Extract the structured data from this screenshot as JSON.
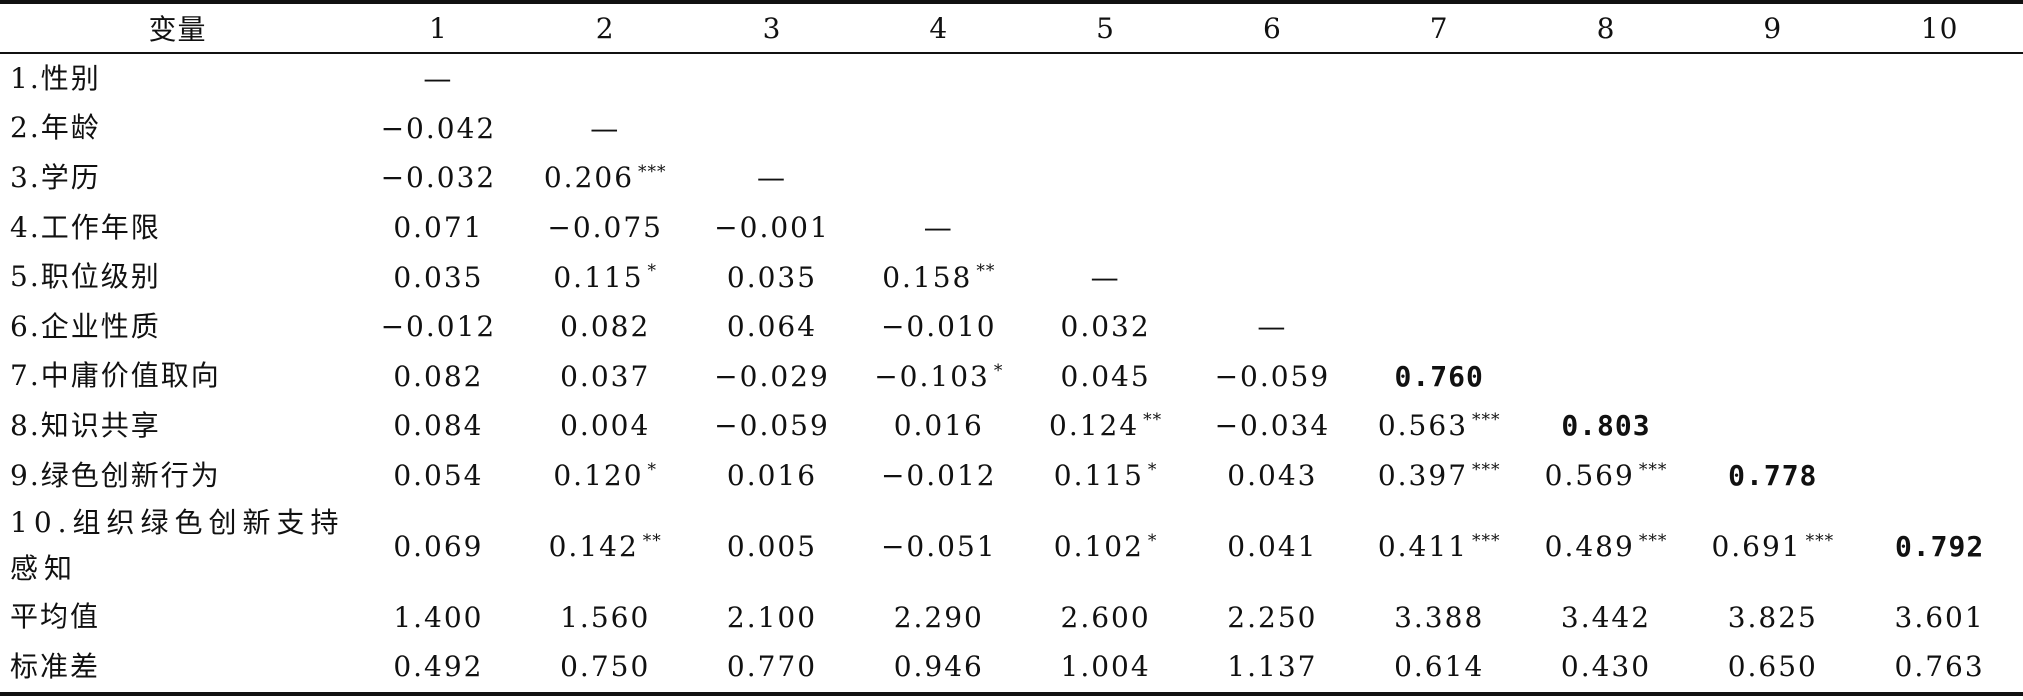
{
  "table": {
    "header": [
      "变量",
      "1",
      "2",
      "3",
      "4",
      "5",
      "6",
      "7",
      "8",
      "9",
      "10"
    ],
    "rows": [
      {
        "label": "1.性别",
        "cells": [
          {
            "v": "—",
            "s": ""
          },
          {
            "v": "",
            "s": ""
          },
          {
            "v": "",
            "s": ""
          },
          {
            "v": "",
            "s": ""
          },
          {
            "v": "",
            "s": ""
          },
          {
            "v": "",
            "s": ""
          },
          {
            "v": "",
            "s": ""
          },
          {
            "v": "",
            "s": ""
          },
          {
            "v": "",
            "s": ""
          },
          {
            "v": "",
            "s": ""
          }
        ]
      },
      {
        "label": "2.年龄",
        "cells": [
          {
            "v": "−0.042",
            "s": ""
          },
          {
            "v": "—",
            "s": ""
          },
          {
            "v": "",
            "s": ""
          },
          {
            "v": "",
            "s": ""
          },
          {
            "v": "",
            "s": ""
          },
          {
            "v": "",
            "s": ""
          },
          {
            "v": "",
            "s": ""
          },
          {
            "v": "",
            "s": ""
          },
          {
            "v": "",
            "s": ""
          },
          {
            "v": "",
            "s": ""
          }
        ]
      },
      {
        "label": "3.学历",
        "cells": [
          {
            "v": "−0.032",
            "s": ""
          },
          {
            "v": "0.206",
            "s": "***"
          },
          {
            "v": "—",
            "s": ""
          },
          {
            "v": "",
            "s": ""
          },
          {
            "v": "",
            "s": ""
          },
          {
            "v": "",
            "s": ""
          },
          {
            "v": "",
            "s": ""
          },
          {
            "v": "",
            "s": ""
          },
          {
            "v": "",
            "s": ""
          },
          {
            "v": "",
            "s": ""
          }
        ]
      },
      {
        "label": "4.工作年限",
        "cells": [
          {
            "v": "0.071",
            "s": ""
          },
          {
            "v": "−0.075",
            "s": ""
          },
          {
            "v": "−0.001",
            "s": ""
          },
          {
            "v": "—",
            "s": ""
          },
          {
            "v": "",
            "s": ""
          },
          {
            "v": "",
            "s": ""
          },
          {
            "v": "",
            "s": ""
          },
          {
            "v": "",
            "s": ""
          },
          {
            "v": "",
            "s": ""
          },
          {
            "v": "",
            "s": ""
          }
        ]
      },
      {
        "label": "5.职位级别",
        "cells": [
          {
            "v": "0.035",
            "s": ""
          },
          {
            "v": "0.115",
            "s": "*"
          },
          {
            "v": "0.035",
            "s": ""
          },
          {
            "v": "0.158",
            "s": "**"
          },
          {
            "v": "—",
            "s": ""
          },
          {
            "v": "",
            "s": ""
          },
          {
            "v": "",
            "s": ""
          },
          {
            "v": "",
            "s": ""
          },
          {
            "v": "",
            "s": ""
          },
          {
            "v": "",
            "s": ""
          }
        ]
      },
      {
        "label": "6.企业性质",
        "cells": [
          {
            "v": "−0.012",
            "s": ""
          },
          {
            "v": "0.082",
            "s": ""
          },
          {
            "v": "0.064",
            "s": ""
          },
          {
            "v": "−0.010",
            "s": ""
          },
          {
            "v": "0.032",
            "s": ""
          },
          {
            "v": "—",
            "s": ""
          },
          {
            "v": "",
            "s": ""
          },
          {
            "v": "",
            "s": ""
          },
          {
            "v": "",
            "s": ""
          },
          {
            "v": "",
            "s": ""
          }
        ]
      },
      {
        "label": "7.中庸价值取向",
        "cells": [
          {
            "v": "0.082",
            "s": ""
          },
          {
            "v": "0.037",
            "s": ""
          },
          {
            "v": "−0.029",
            "s": ""
          },
          {
            "v": "−0.103",
            "s": "*"
          },
          {
            "v": "0.045",
            "s": ""
          },
          {
            "v": "−0.059",
            "s": ""
          },
          {
            "v": "0.760",
            "s": "",
            "bold": true
          },
          {
            "v": "",
            "s": ""
          },
          {
            "v": "",
            "s": ""
          },
          {
            "v": "",
            "s": ""
          }
        ]
      },
      {
        "label": "8.知识共享",
        "cells": [
          {
            "v": "0.084",
            "s": ""
          },
          {
            "v": "0.004",
            "s": ""
          },
          {
            "v": "−0.059",
            "s": ""
          },
          {
            "v": "0.016",
            "s": ""
          },
          {
            "v": "0.124",
            "s": "**"
          },
          {
            "v": "−0.034",
            "s": ""
          },
          {
            "v": "0.563",
            "s": "***"
          },
          {
            "v": "0.803",
            "s": "",
            "bold": true
          },
          {
            "v": "",
            "s": ""
          },
          {
            "v": "",
            "s": ""
          }
        ]
      },
      {
        "label": "9.绿色创新行为",
        "cells": [
          {
            "v": "0.054",
            "s": ""
          },
          {
            "v": "0.120",
            "s": "*"
          },
          {
            "v": "0.016",
            "s": ""
          },
          {
            "v": "−0.012",
            "s": ""
          },
          {
            "v": "0.115",
            "s": "*"
          },
          {
            "v": "0.043",
            "s": ""
          },
          {
            "v": "0.397",
            "s": "***"
          },
          {
            "v": "0.569",
            "s": "***"
          },
          {
            "v": "0.778",
            "s": "",
            "bold": true
          },
          {
            "v": "",
            "s": ""
          }
        ]
      },
      {
        "label": "10.组织绿色创新支持感知",
        "tall": true,
        "cells": [
          {
            "v": "0.069",
            "s": ""
          },
          {
            "v": "0.142",
            "s": "**"
          },
          {
            "v": "0.005",
            "s": ""
          },
          {
            "v": "−0.051",
            "s": ""
          },
          {
            "v": "0.102",
            "s": "*"
          },
          {
            "v": "0.041",
            "s": ""
          },
          {
            "v": "0.411",
            "s": "***"
          },
          {
            "v": "0.489",
            "s": "***"
          },
          {
            "v": "0.691",
            "s": "***"
          },
          {
            "v": "0.792",
            "s": "",
            "bold": true
          }
        ]
      },
      {
        "label": "平均值",
        "cells": [
          {
            "v": "1.400",
            "s": ""
          },
          {
            "v": "1.560",
            "s": ""
          },
          {
            "v": "2.100",
            "s": ""
          },
          {
            "v": "2.290",
            "s": ""
          },
          {
            "v": "2.600",
            "s": ""
          },
          {
            "v": "2.250",
            "s": ""
          },
          {
            "v": "3.388",
            "s": ""
          },
          {
            "v": "3.442",
            "s": ""
          },
          {
            "v": "3.825",
            "s": ""
          },
          {
            "v": "3.601",
            "s": ""
          }
        ]
      },
      {
        "label": "标准差",
        "cells": [
          {
            "v": "0.492",
            "s": ""
          },
          {
            "v": "0.750",
            "s": ""
          },
          {
            "v": "0.770",
            "s": ""
          },
          {
            "v": "0.946",
            "s": ""
          },
          {
            "v": "1.004",
            "s": ""
          },
          {
            "v": "1.137",
            "s": ""
          },
          {
            "v": "0.614",
            "s": ""
          },
          {
            "v": "0.430",
            "s": ""
          },
          {
            "v": "0.650",
            "s": ""
          },
          {
            "v": "0.763",
            "s": ""
          }
        ]
      }
    ]
  }
}
